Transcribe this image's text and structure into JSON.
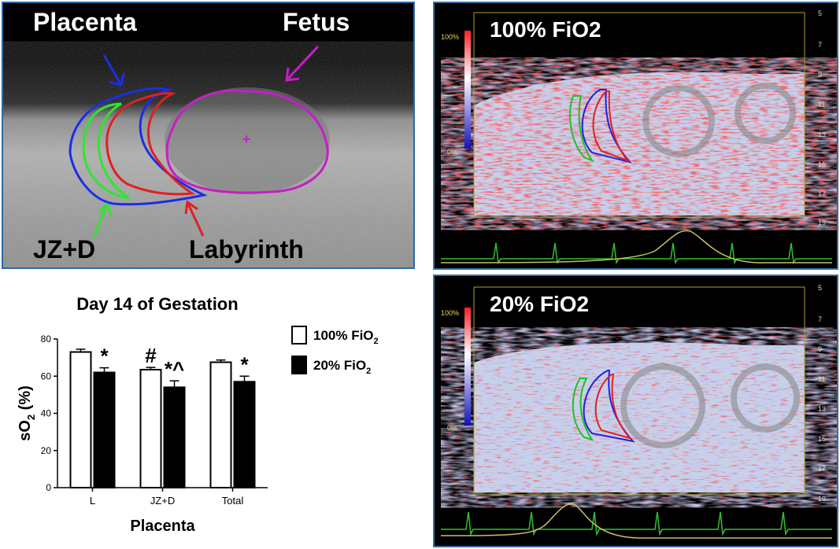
{
  "panel_a": {
    "labels": {
      "placenta": "Placenta",
      "fetus": "Fetus",
      "jzd": "JZ+D",
      "labyrinth": "Labyrinth"
    },
    "colors": {
      "placenta_outline": "#1a2ee6",
      "fetus_outline": "#c61ec6",
      "jzd_outline": "#2ee62e",
      "labyrinth_outline": "#e02020"
    }
  },
  "panel_top_right": {
    "title": "100% FiO2",
    "scale_top": "100%",
    "scale_bottom": "0%",
    "depth_ticks": [
      "5",
      "7",
      "9",
      "11",
      "13",
      "15",
      "17",
      "19"
    ]
  },
  "panel_bottom_right": {
    "title": "20% FiO2",
    "scale_top": "100%",
    "scale_bottom": "0%",
    "depth_ticks": [
      "5",
      "7",
      "9",
      "11",
      "13",
      "15",
      "17",
      "19"
    ]
  },
  "chart_data": {
    "type": "bar",
    "title": "Day 14 of Gestation",
    "xlabel": "Placenta",
    "ylabel": "sO2 (%)",
    "ylim": [
      0,
      80
    ],
    "yticks": [
      "0",
      "20",
      "40",
      "60",
      "80"
    ],
    "categories": [
      "L",
      "JZ+D",
      "Total"
    ],
    "series": [
      {
        "name": "100% FiO2",
        "values": [
          73,
          63.5,
          67.5
        ],
        "errors": [
          1.5,
          1.2,
          1.2
        ],
        "color": "#ffffff"
      },
      {
        "name": "20% FiO2",
        "values": [
          62,
          54,
          57
        ],
        "errors": [
          2.5,
          3.5,
          3
        ],
        "color": "#000000"
      }
    ],
    "legend": [
      {
        "base": "100% FiO",
        "sub": "2"
      },
      {
        "base": "20% FiO",
        "sub": "2"
      }
    ],
    "ylabel_parts": {
      "base": "sO",
      "sub": "2",
      "rest": " (%)"
    },
    "annotations": [
      {
        "category": "L",
        "series": 1,
        "text": "*"
      },
      {
        "category": "JZ+D",
        "series": 0,
        "text": "#"
      },
      {
        "category": "JZ+D",
        "series": 1,
        "text": "*^"
      },
      {
        "category": "Total",
        "series": 1,
        "text": "*"
      }
    ],
    "legend_position": "right"
  }
}
